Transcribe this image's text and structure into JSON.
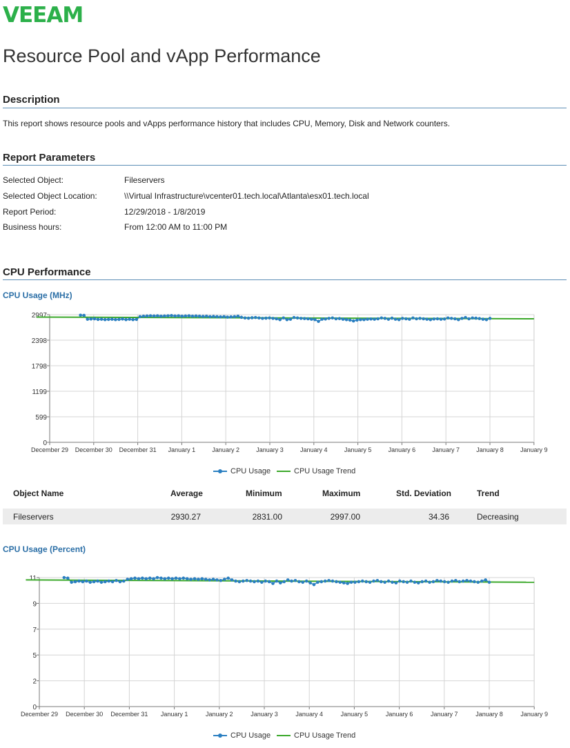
{
  "logo": "VEEAM",
  "title": "Resource Pool and vApp Performance",
  "description": {
    "heading": "Description",
    "text": "This report shows resource pools and vApps performance history that includes CPU, Memory, Disk and Network counters."
  },
  "parameters": {
    "heading": "Report Parameters",
    "rows": [
      {
        "label": "Selected Object:",
        "value": "Fileservers"
      },
      {
        "label": "Selected Object Location:",
        "value": "\\\\Virtual Infrastructure\\vcenter01.tech.local\\Atlanta\\esx01.tech.local"
      },
      {
        "label": "Report Period:",
        "value": "12/29/2018 - 1/8/2019"
      },
      {
        "label": "Business hours:",
        "value": "From 12:00 AM to 11:00 PM"
      }
    ]
  },
  "cpu_section": {
    "heading": "CPU Performance"
  },
  "colors": {
    "usage": "#2a7fc1",
    "trend": "#3aa829",
    "accent": "#2a6ea6",
    "grid": "#d4d4d4"
  },
  "chart_data": [
    {
      "type": "line",
      "title": "CPU Usage (MHz)",
      "x_ticks": [
        "December 29",
        "December 30",
        "December 31",
        "January 1",
        "January 2",
        "January 3",
        "January 4",
        "January 5",
        "January 6",
        "January 7",
        "January 8",
        "January 9"
      ],
      "y_ticks": [
        "0",
        "599",
        "1199",
        "1798",
        "2398",
        "2997"
      ],
      "ylim": [
        0,
        2997
      ],
      "series": [
        {
          "name": "CPU Usage",
          "x_start": 0.7,
          "x_end": 10.0,
          "base": 2930,
          "amplitude": 60,
          "values": [
            2985,
            2980,
            2890,
            2895,
            2900,
            2885,
            2890,
            2880,
            2885,
            2890,
            2880,
            2885,
            2895,
            2880,
            2890,
            2880,
            2885,
            2950,
            2960,
            2965,
            2970,
            2965,
            2970,
            2960,
            2965,
            2970,
            2975,
            2965,
            2970,
            2960,
            2965,
            2970,
            2960,
            2965,
            2960,
            2955,
            2960,
            2950,
            2955,
            2950,
            2945,
            2950,
            2940,
            2945,
            2950,
            2960,
            2935,
            2920,
            2915,
            2925,
            2930,
            2920,
            2910,
            2915,
            2920,
            2910,
            2900,
            2880,
            2920,
            2880,
            2890,
            2930,
            2920,
            2910,
            2905,
            2900,
            2890,
            2880,
            2840,
            2890,
            2895,
            2910,
            2920,
            2900,
            2905,
            2890,
            2880,
            2870,
            2850,
            2870,
            2880,
            2880,
            2890,
            2895,
            2890,
            2900,
            2920,
            2910,
            2890,
            2915,
            2890,
            2880,
            2910,
            2900,
            2890,
            2920,
            2900,
            2910,
            2900,
            2890,
            2880,
            2895,
            2900,
            2890,
            2895,
            2920,
            2910,
            2900,
            2880,
            2910,
            2930,
            2900,
            2920,
            2915,
            2905,
            2890,
            2880,
            2910
          ]
        },
        {
          "name": "CPU Usage Trend",
          "x": [
            -0.3,
            11.0
          ],
          "values": [
            2940,
            2900
          ]
        }
      ],
      "legend": [
        "CPU Usage",
        "CPU Usage Trend"
      ]
    },
    {
      "type": "line",
      "title": "CPU Usage (Percent)",
      "x_ticks": [
        "December 29",
        "December 30",
        "December 31",
        "January 1",
        "January 2",
        "January 3",
        "January 4",
        "January 5",
        "January 6",
        "January 7",
        "January 8",
        "January 9"
      ],
      "y_ticks": [
        "0",
        "2",
        "5",
        "7",
        "9",
        "11"
      ],
      "ylim": [
        0,
        11
      ],
      "series": [
        {
          "name": "CPU Usage",
          "x_start": 0.55,
          "x_end": 10.0,
          "values": [
            11.0,
            10.95,
            10.6,
            10.65,
            10.7,
            10.65,
            10.7,
            10.6,
            10.65,
            10.7,
            10.6,
            10.65,
            10.7,
            10.65,
            10.75,
            10.65,
            10.7,
            10.85,
            10.9,
            10.95,
            10.9,
            10.95,
            10.9,
            10.95,
            10.9,
            11.0,
            10.95,
            10.9,
            10.95,
            10.9,
            10.95,
            10.9,
            10.95,
            10.9,
            10.85,
            10.9,
            10.85,
            10.9,
            10.85,
            10.8,
            10.85,
            10.8,
            10.75,
            10.85,
            10.95,
            10.8,
            10.7,
            10.65,
            10.7,
            10.75,
            10.7,
            10.65,
            10.7,
            10.6,
            10.7,
            10.65,
            10.5,
            10.7,
            10.55,
            10.65,
            10.8,
            10.7,
            10.75,
            10.65,
            10.6,
            10.7,
            10.55,
            10.4,
            10.6,
            10.65,
            10.7,
            10.75,
            10.7,
            10.65,
            10.6,
            10.55,
            10.5,
            10.6,
            10.6,
            10.65,
            10.7,
            10.65,
            10.6,
            10.7,
            10.75,
            10.65,
            10.6,
            10.7,
            10.6,
            10.55,
            10.7,
            10.65,
            10.6,
            10.7,
            10.6,
            10.55,
            10.65,
            10.7,
            10.6,
            10.65,
            10.75,
            10.7,
            10.65,
            10.6,
            10.7,
            10.75,
            10.65,
            10.7,
            10.75,
            10.7,
            10.65,
            10.6,
            10.7,
            10.8,
            10.6
          ]
        },
        {
          "name": "CPU Usage Trend",
          "x": [
            -0.3,
            11.0
          ],
          "values": [
            10.8,
            10.6
          ]
        }
      ],
      "legend": [
        "CPU Usage",
        "CPU Usage Trend"
      ]
    }
  ],
  "cpu_table": {
    "headers": [
      "Object Name",
      "Average",
      "Minimum",
      "Maximum",
      "Std. Deviation",
      "Trend"
    ],
    "rows": [
      [
        "Fileservers",
        "2930.27",
        "2831.00",
        "2997.00",
        "34.36",
        "Decreasing"
      ]
    ]
  },
  "chart2_title": "CPU Usage (Percent)"
}
